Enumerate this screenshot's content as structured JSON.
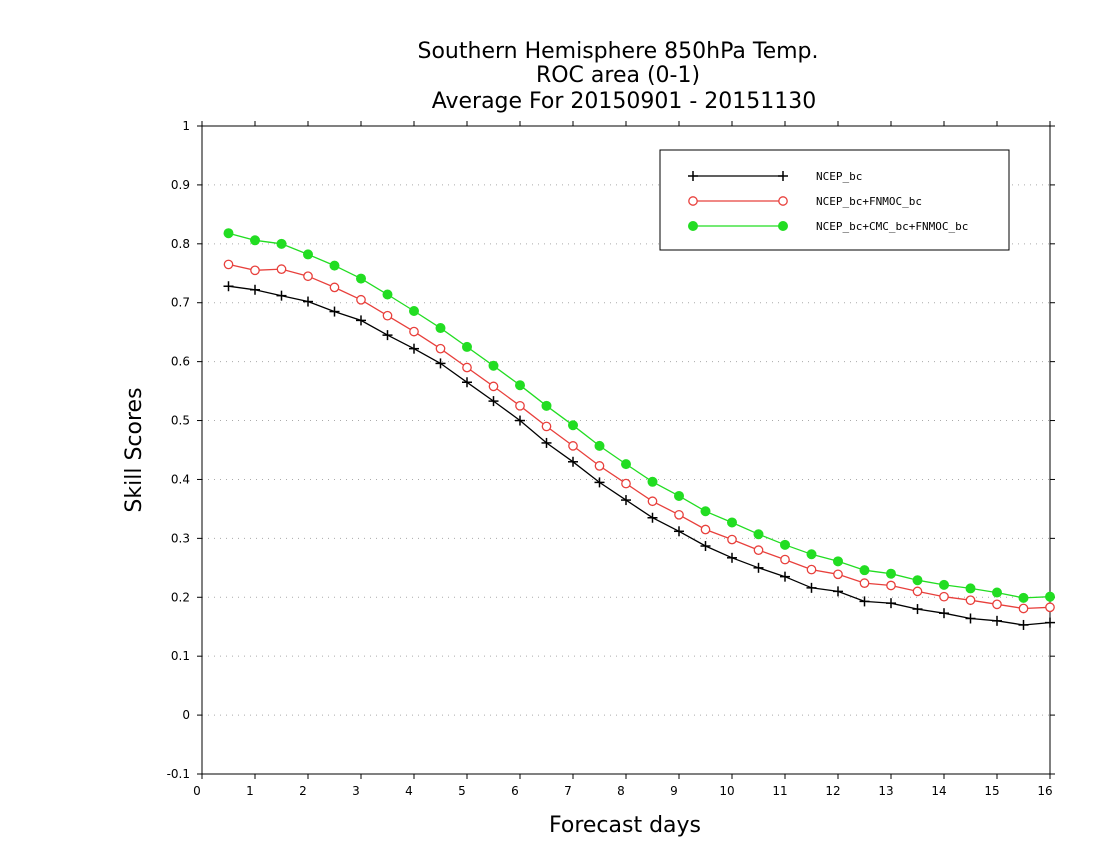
{
  "chart_data": {
    "type": "line",
    "title": [
      "Southern Hemisphere 850hPa Temp.",
      "ROC area (0-1)",
      "Average For 20150901 - 20151130"
    ],
    "xlabel": "Forecast days",
    "ylabel": "Skill Scores",
    "xlim": [
      0,
      16
    ],
    "ylim": [
      -0.1,
      1.0
    ],
    "xticks": [
      "0",
      "1",
      "2",
      "3",
      "4",
      "5",
      "6",
      "7",
      "8",
      "9",
      "10",
      "11",
      "12",
      "13",
      "14",
      "15",
      "16"
    ],
    "yticks": [
      "-0.1",
      "0",
      "0.1",
      "0.2",
      "0.3",
      "0.4",
      "0.5",
      "0.6",
      "0.7",
      "0.8",
      "0.9",
      "1"
    ],
    "grid": "horizontal dotted",
    "legend_position": "top-right",
    "x": [
      0.5,
      1,
      1.5,
      2,
      2.5,
      3,
      3.5,
      4,
      4.5,
      5,
      5.5,
      6,
      6.5,
      7,
      7.5,
      8,
      8.5,
      9,
      9.5,
      10,
      10.5,
      11,
      11.5,
      12,
      12.5,
      13,
      13.5,
      14,
      14.5,
      15,
      15.5,
      16
    ],
    "series": [
      {
        "name": "NCEP_bc",
        "color": "#000000",
        "marker": "plus",
        "values": [
          0.728,
          0.722,
          0.712,
          0.702,
          0.685,
          0.67,
          0.645,
          0.622,
          0.597,
          0.565,
          0.533,
          0.5,
          0.462,
          0.43,
          0.395,
          0.365,
          0.335,
          0.312,
          0.287,
          0.267,
          0.25,
          0.235,
          0.216,
          0.21,
          0.193,
          0.19,
          0.18,
          0.173,
          0.164,
          0.16,
          0.153,
          0.157
        ]
      },
      {
        "name": "NCEP_bc+FNMOC_bc",
        "color": "#e8403c",
        "marker": "open-circle",
        "values": [
          0.765,
          0.755,
          0.757,
          0.745,
          0.726,
          0.705,
          0.678,
          0.651,
          0.622,
          0.59,
          0.558,
          0.525,
          0.49,
          0.457,
          0.423,
          0.393,
          0.363,
          0.34,
          0.315,
          0.298,
          0.28,
          0.264,
          0.247,
          0.239,
          0.224,
          0.22,
          0.21,
          0.201,
          0.195,
          0.188,
          0.181,
          0.183
        ]
      },
      {
        "name": "NCEP_bc+CMC_bc+FNMOC_bc",
        "color": "#22dd22",
        "marker": "filled-circle",
        "values": [
          0.818,
          0.806,
          0.8,
          0.782,
          0.763,
          0.741,
          0.714,
          0.686,
          0.657,
          0.625,
          0.593,
          0.56,
          0.525,
          0.492,
          0.457,
          0.426,
          0.396,
          0.372,
          0.346,
          0.327,
          0.307,
          0.289,
          0.273,
          0.261,
          0.246,
          0.24,
          0.229,
          0.221,
          0.215,
          0.208,
          0.199,
          0.201
        ]
      }
    ]
  }
}
